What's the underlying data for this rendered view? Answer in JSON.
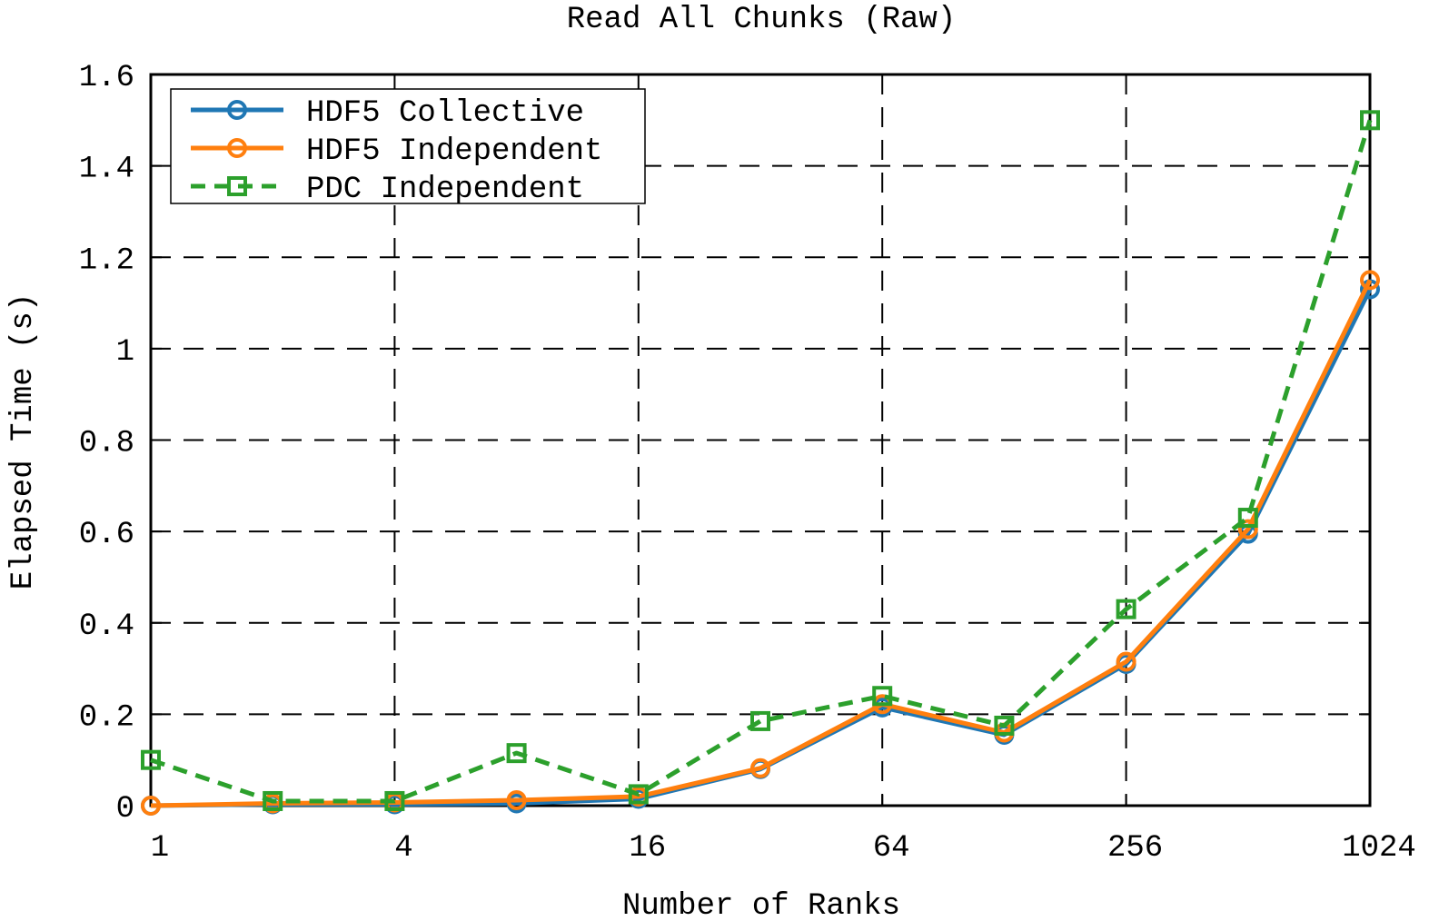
{
  "chart_data": {
    "type": "line",
    "title": "Read All Chunks (Raw)",
    "xlabel": "Number of Ranks",
    "ylabel": "Elapsed Time (s)",
    "x_scale": "log2",
    "xlim": [
      1,
      1024
    ],
    "ylim": [
      0,
      1.6
    ],
    "x_ticks": [
      1,
      4,
      16,
      64,
      256,
      1024
    ],
    "x_tick_labels": [
      "1",
      "4",
      "16",
      "64",
      "256",
      "1024"
    ],
    "y_ticks": [
      0,
      0.2,
      0.4,
      0.6,
      0.8,
      1.0,
      1.2,
      1.4,
      1.6
    ],
    "y_tick_labels": [
      "0",
      "0.2",
      "0.4",
      "0.6",
      "0.8",
      "1",
      "1.2",
      "1.4",
      "1.6"
    ],
    "grid": true,
    "legend_position": "top-left",
    "x": [
      1,
      2,
      4,
      8,
      16,
      32,
      64,
      128,
      256,
      512,
      1024
    ],
    "series": [
      {
        "name": "HDF5 Collective",
        "color": "#1f77b4",
        "line_style": "solid",
        "marker": "circle",
        "values": [
          0.0,
          0.003,
          0.003,
          0.005,
          0.015,
          0.08,
          0.215,
          0.155,
          0.31,
          0.595,
          1.13
        ]
      },
      {
        "name": "HDF5 Independent",
        "color": "#ff7f0e",
        "line_style": "solid",
        "marker": "circle",
        "values": [
          0.0,
          0.005,
          0.007,
          0.012,
          0.02,
          0.082,
          0.222,
          0.16,
          0.315,
          0.605,
          1.15
        ]
      },
      {
        "name": "PDC Independent",
        "color": "#2ca02c",
        "line_style": "dashed",
        "marker": "square",
        "values": [
          0.1,
          0.01,
          0.01,
          0.115,
          0.025,
          0.185,
          0.24,
          0.175,
          0.43,
          0.63,
          1.5
        ]
      }
    ]
  }
}
